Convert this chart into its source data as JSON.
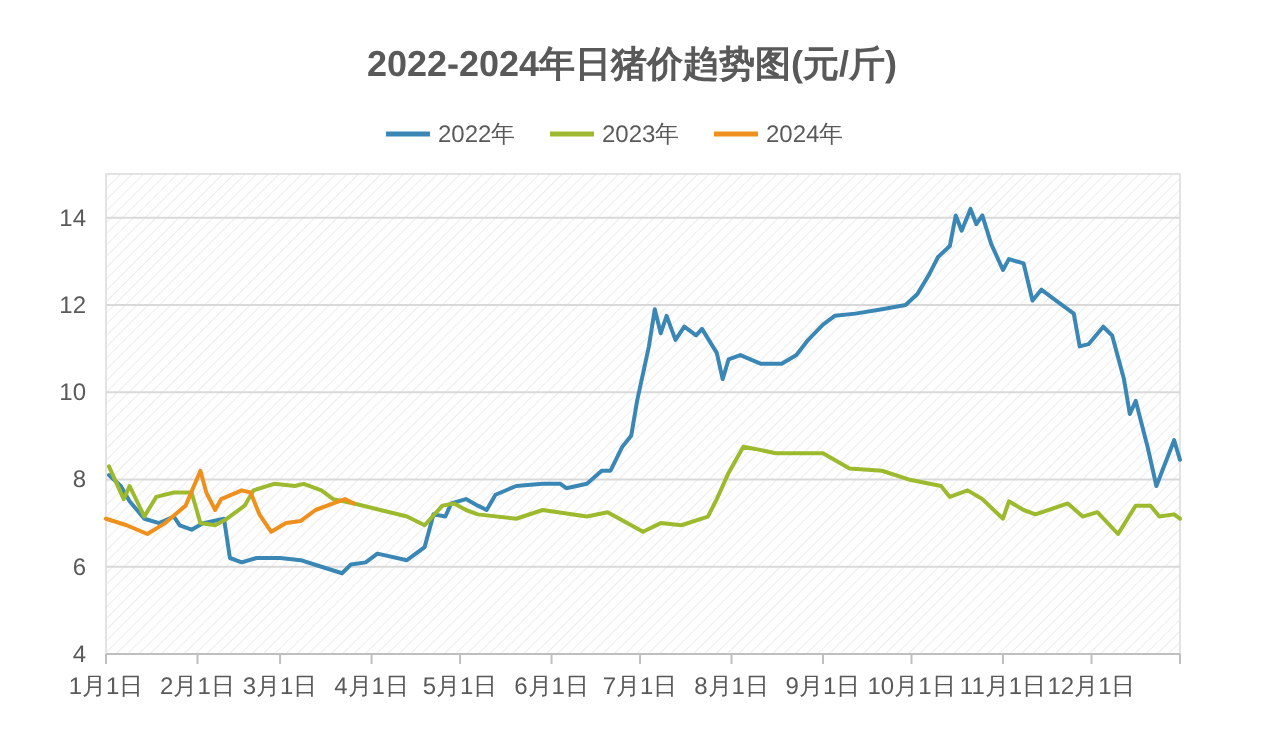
{
  "chart_data": {
    "type": "line",
    "title": "2022-2024年日猪价趋势图(元/斤)",
    "legend": "top",
    "grid": "y",
    "marker": "none",
    "line_style": "solid",
    "xlim": [
      "--01-01",
      "--12-31"
    ],
    "xticks": [
      {
        "value": "--01-01",
        "label": "1月1日"
      },
      {
        "value": "--02-01",
        "label": "2月1日"
      },
      {
        "value": "--03-01",
        "label": "3月1日"
      },
      {
        "value": "--04-01",
        "label": "4月1日"
      },
      {
        "value": "--05-01",
        "label": "5月1日"
      },
      {
        "value": "--06-01",
        "label": "6月1日"
      },
      {
        "value": "--07-01",
        "label": "7月1日"
      },
      {
        "value": "--08-01",
        "label": "8月1日"
      },
      {
        "value": "--09-01",
        "label": "9月1日"
      },
      {
        "value": "--10-01",
        "label": "10月1日"
      },
      {
        "value": "--11-01",
        "label": "11月1日"
      },
      {
        "value": "--12-01",
        "label": "12月1日"
      },
      {
        "value": "--12-31",
        "label": null
      }
    ],
    "ylim": [
      4,
      15
    ],
    "yticks": [
      4,
      6,
      8,
      10,
      12,
      14
    ],
    "series": [
      {
        "name": "2022年",
        "color": "#3a87b5",
        "x": [
          "--01-02",
          "--01-06",
          "--01-09",
          "--01-14",
          "--01-19",
          "--01-24",
          "--01-26",
          "--01-30",
          "--02-03",
          "--02-10",
          "--02-12",
          "--02-16",
          "--02-21",
          "--03-01",
          "--03-08",
          "--03-15",
          "--03-22",
          "--03-25",
          "--03-30",
          "--04-03",
          "--04-13",
          "--04-19",
          "--04-22",
          "--04-26",
          "--04-28",
          "--05-03",
          "--05-07",
          "--05-10",
          "--05-13",
          "--05-20",
          "--05-29",
          "--06-04",
          "--06-06",
          "--06-13",
          "--06-18",
          "--06-21",
          "--06-25",
          "--06-28",
          "--06-30",
          "--07-04",
          "--07-06",
          "--07-08",
          "--07-10",
          "--07-13",
          "--07-16",
          "--07-20",
          "--07-22",
          "--07-27",
          "--07-29",
          "--07-31",
          "--08-04",
          "--08-11",
          "--08-18",
          "--08-23",
          "--08-27",
          "--09-01",
          "--09-05",
          "--09-12",
          "--09-21",
          "--09-29",
          "--10-03",
          "--10-07",
          "--10-10",
          "--10-14",
          "--10-16",
          "--10-18",
          "--10-21",
          "--10-23",
          "--10-25",
          "--10-28",
          "--11-01",
          "--11-03",
          "--11-08",
          "--11-11",
          "--11-14",
          "--11-19",
          "--11-25",
          "--11-27",
          "--11-30",
          "--12-05",
          "--12-08",
          "--12-12",
          "--12-14",
          "--12-16",
          "--12-20",
          "--12-23",
          "--12-25",
          "--12-29",
          "--12-31"
        ],
        "values": [
          8.1,
          7.85,
          7.5,
          7.1,
          7.0,
          7.15,
          6.95,
          6.85,
          7.0,
          7.1,
          6.2,
          6.1,
          6.2,
          6.2,
          6.15,
          6.0,
          5.85,
          6.05,
          6.1,
          6.3,
          6.15,
          6.45,
          7.2,
          7.15,
          7.45,
          7.55,
          7.4,
          7.3,
          7.65,
          7.85,
          7.9,
          7.9,
          7.8,
          7.9,
          8.2,
          8.2,
          8.75,
          9.0,
          9.8,
          11.05,
          11.9,
          11.35,
          11.75,
          11.2,
          11.5,
          11.3,
          11.45,
          10.9,
          10.3,
          10.75,
          10.85,
          10.65,
          10.65,
          10.85,
          11.2,
          11.55,
          11.75,
          11.8,
          11.9,
          12.0,
          12.25,
          12.7,
          13.1,
          13.35,
          14.05,
          13.7,
          14.2,
          13.85,
          14.05,
          13.4,
          12.8,
          13.05,
          12.95,
          12.1,
          12.35,
          12.1,
          11.8,
          11.05,
          11.1,
          11.5,
          11.3,
          10.3,
          9.5,
          9.8,
          8.75,
          7.85,
          8.2,
          8.9,
          8.45
        ]
      },
      {
        "name": "2023年",
        "color": "#9dba2e",
        "x": [
          "--01-02",
          "--01-07",
          "--01-09",
          "--01-14",
          "--01-18",
          "--01-24",
          "--01-30",
          "--02-02",
          "--02-07",
          "--02-11",
          "--02-17",
          "--02-20",
          "--02-27",
          "--03-06",
          "--03-09",
          "--03-15",
          "--03-19",
          "--03-26",
          "--04-04",
          "--04-13",
          "--04-19",
          "--04-25",
          "--04-29",
          "--05-03",
          "--05-07",
          "--05-20",
          "--05-29",
          "--06-13",
          "--06-20",
          "--07-02",
          "--07-08",
          "--07-15",
          "--07-24",
          "--07-27",
          "--07-31",
          "--08-05",
          "--08-09",
          "--08-16",
          "--09-01",
          "--09-10",
          "--09-21",
          "--09-30",
          "--10-11",
          "--10-14",
          "--10-20",
          "--10-25",
          "--11-01",
          "--11-03",
          "--11-08",
          "--11-12",
          "--11-23",
          "--11-28",
          "--12-03",
          "--12-10",
          "--12-16",
          "--12-21",
          "--12-24",
          "--12-29",
          "--12-31"
        ],
        "values": [
          8.3,
          7.55,
          7.85,
          7.15,
          7.6,
          7.7,
          7.7,
          7.0,
          6.95,
          7.1,
          7.4,
          7.75,
          7.9,
          7.85,
          7.9,
          7.75,
          7.55,
          7.45,
          7.3,
          7.15,
          6.95,
          7.4,
          7.45,
          7.3,
          7.2,
          7.1,
          7.3,
          7.15,
          7.25,
          6.8,
          7.0,
          6.95,
          7.15,
          7.55,
          8.15,
          8.75,
          8.7,
          8.6,
          8.6,
          8.25,
          8.2,
          8.0,
          7.85,
          7.6,
          7.75,
          7.55,
          7.1,
          7.5,
          7.3,
          7.2,
          7.45,
          7.15,
          7.25,
          6.75,
          7.4,
          7.4,
          7.15,
          7.2,
          7.1
        ]
      },
      {
        "name": "2024年",
        "color": "#f0901c",
        "x": [
          "--01-01",
          "--01-08",
          "--01-15",
          "--01-21",
          "--01-28",
          "--02-02",
          "--02-04",
          "--02-07",
          "--02-09",
          "--02-16",
          "--02-19",
          "--02-22",
          "--02-26",
          "--03-03",
          "--03-08",
          "--03-13",
          "--03-19",
          "--03-23",
          "--03-26"
        ],
        "values": [
          7.1,
          6.95,
          6.75,
          7.0,
          7.4,
          8.2,
          7.7,
          7.3,
          7.55,
          7.75,
          7.7,
          7.2,
          6.8,
          7.0,
          7.05,
          7.3,
          7.45,
          7.55,
          7.45
        ]
      }
    ]
  }
}
